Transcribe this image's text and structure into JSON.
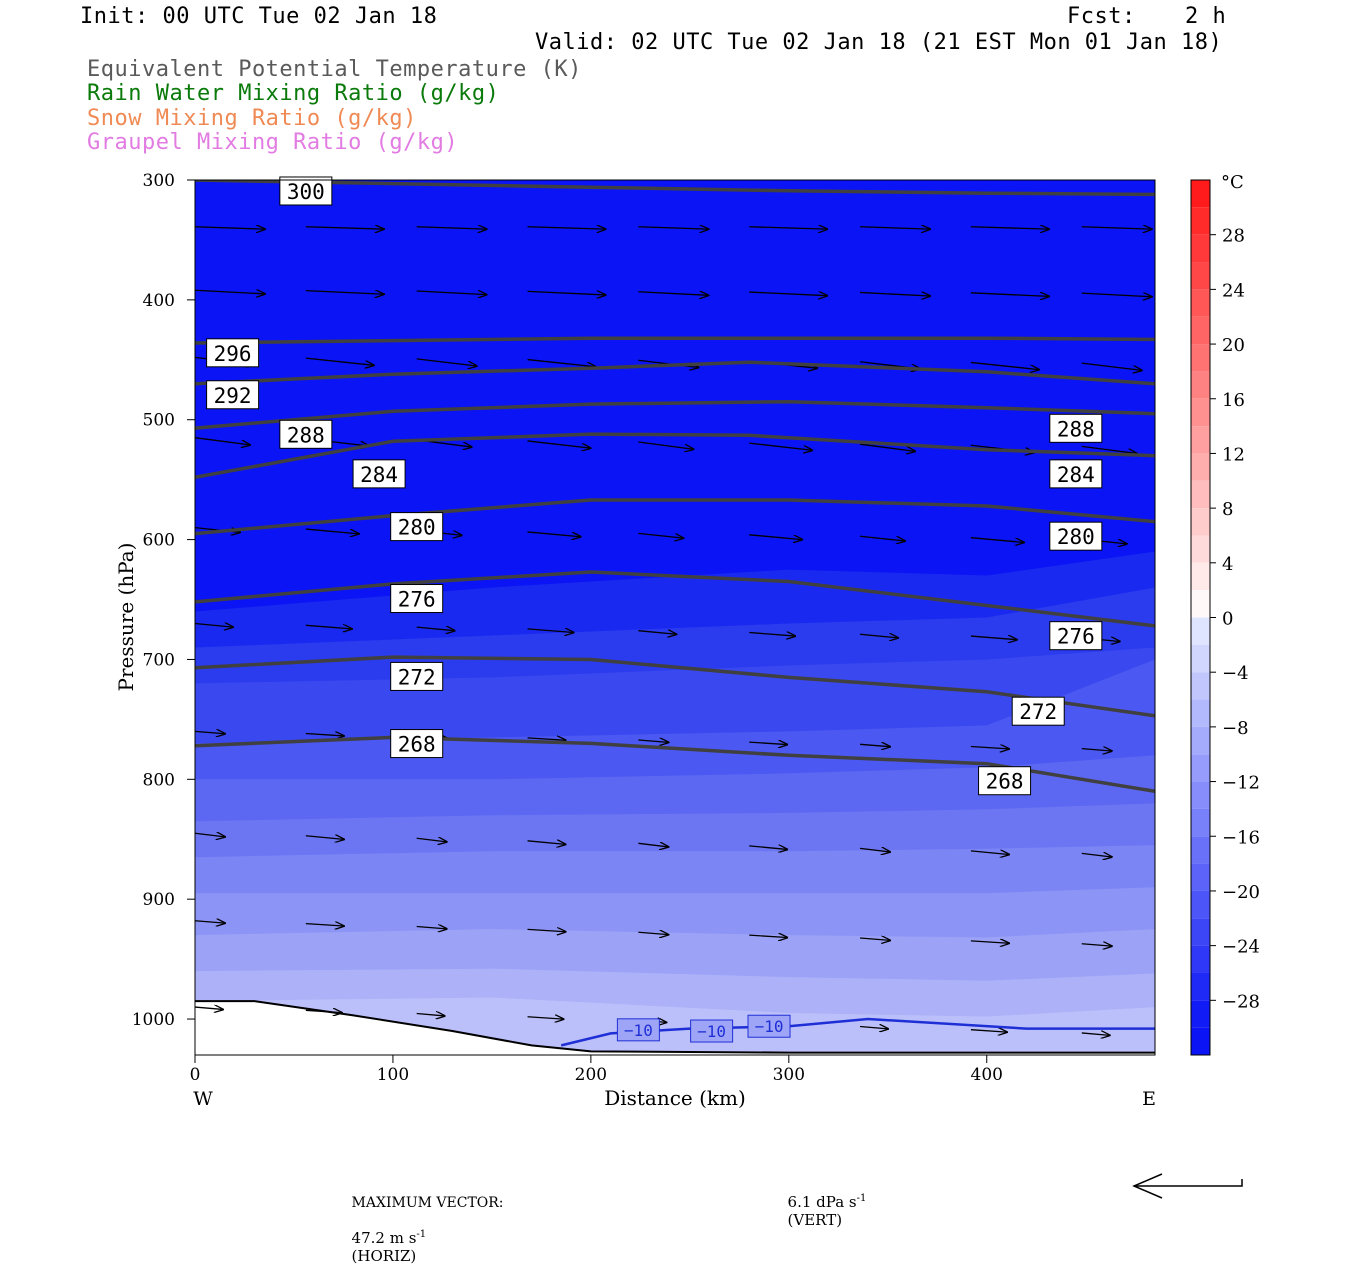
{
  "header": {
    "init": "Init: 00 UTC Tue 02 Jan 18",
    "fcst_label": "Fcst:",
    "fcst_value": "2 h",
    "valid": "Valid: 02 UTC Tue 02 Jan 18 (21 EST Mon 01 Jan 18)"
  },
  "legend": [
    {
      "label": "Equivalent Potential Temperature (K)",
      "color": "#5a5a5a"
    },
    {
      "label": "Rain Water Mixing Ratio (g/kg)",
      "color": "#0a7a0a"
    },
    {
      "label": "Snow Mixing Ratio (g/kg)",
      "color": "#f08a55"
    },
    {
      "label": "Graupel Mixing Ratio (g/kg)",
      "color": "#e27be2"
    }
  ],
  "footer": {
    "max_vector_label": "MAXIMUM VECTOR:",
    "horiz_value": "47.2 m s",
    "horiz_unit": "(HORIZ)",
    "vert_value": "6.1 dPa s",
    "vert_unit": "(VERT)",
    "exponent": "-1"
  },
  "chart_data": {
    "type": "contour",
    "xlabel": "Distance (km)",
    "ylabel": "Pressure (hPa)",
    "x_ticks": [
      0,
      100,
      200,
      300,
      400
    ],
    "y_ticks": [
      300,
      400,
      500,
      600,
      700,
      800,
      900,
      1000
    ],
    "xlim": [
      0,
      485
    ],
    "ylim": [
      300,
      1030
    ],
    "y_scale": "linear",
    "x_end_labels": {
      "left": "W",
      "right": "E"
    },
    "colorbar": {
      "unit": "°C",
      "tick_labels": [
        "28",
        "24",
        "20",
        "16",
        "12",
        "8",
        "4",
        "0",
        "−4",
        "−8",
        "−12",
        "−16",
        "−20",
        "−24",
        "−28"
      ],
      "tick_values": [
        28,
        24,
        20,
        16,
        12,
        8,
        4,
        0,
        -4,
        -8,
        -12,
        -16,
        -20,
        -24,
        -28
      ],
      "range": [
        -32,
        32
      ],
      "step": 2
    },
    "theta_e_contours": [
      {
        "label": "300",
        "points": [
          [
            0,
            300
          ],
          [
            100,
            303
          ],
          [
            200,
            306
          ],
          [
            300,
            309
          ],
          [
            400,
            311
          ],
          [
            485,
            312
          ]
        ],
        "label_positions": [
          [
            56,
            310
          ]
        ]
      },
      {
        "label": "296",
        "points": [
          [
            0,
            436
          ],
          [
            100,
            434
          ],
          [
            200,
            432
          ],
          [
            300,
            432
          ],
          [
            400,
            432
          ],
          [
            485,
            433
          ]
        ],
        "label_positions": [
          [
            19,
            445
          ]
        ]
      },
      {
        "label": "292",
        "points": [
          [
            0,
            470
          ],
          [
            100,
            462
          ],
          [
            200,
            457
          ],
          [
            280,
            452
          ],
          [
            400,
            460
          ],
          [
            485,
            470
          ]
        ],
        "label_positions": [
          [
            19,
            480
          ]
        ]
      },
      {
        "label": "288",
        "points": [
          [
            0,
            507
          ],
          [
            100,
            493
          ],
          [
            200,
            487
          ],
          [
            300,
            485
          ],
          [
            400,
            490
          ],
          [
            485,
            495
          ]
        ],
        "label_positions": [
          [
            56,
            513
          ],
          [
            445,
            508
          ]
        ]
      },
      {
        "label": "284",
        "points": [
          [
            0,
            548
          ],
          [
            100,
            518
          ],
          [
            200,
            512
          ],
          [
            280,
            513
          ],
          [
            400,
            525
          ],
          [
            485,
            530
          ]
        ],
        "label_positions": [
          [
            93,
            546
          ],
          [
            445,
            546
          ]
        ]
      },
      {
        "label": "280",
        "points": [
          [
            0,
            595
          ],
          [
            100,
            580
          ],
          [
            200,
            567
          ],
          [
            300,
            567
          ],
          [
            400,
            572
          ],
          [
            485,
            585
          ]
        ],
        "label_positions": [
          [
            112,
            590
          ],
          [
            445,
            598
          ]
        ]
      },
      {
        "label": "276",
        "points": [
          [
            0,
            652
          ],
          [
            100,
            637
          ],
          [
            200,
            627
          ],
          [
            300,
            635
          ],
          [
            400,
            655
          ],
          [
            485,
            672
          ]
        ],
        "label_positions": [
          [
            112,
            650
          ],
          [
            445,
            681
          ]
        ]
      },
      {
        "label": "272",
        "points": [
          [
            0,
            707
          ],
          [
            100,
            698
          ],
          [
            200,
            700
          ],
          [
            300,
            715
          ],
          [
            400,
            727
          ],
          [
            485,
            747
          ]
        ],
        "label_positions": [
          [
            112,
            715
          ],
          [
            426,
            744
          ]
        ]
      },
      {
        "label": "268",
        "points": [
          [
            0,
            772
          ],
          [
            100,
            765
          ],
          [
            200,
            770
          ],
          [
            300,
            780
          ],
          [
            400,
            787
          ],
          [
            485,
            810
          ]
        ],
        "label_positions": [
          [
            112,
            771
          ],
          [
            409,
            802
          ]
        ]
      }
    ],
    "temperature_contour": {
      "label": "−10",
      "value": -10,
      "color": "#1f2fd6",
      "points": [
        [
          185,
          1022
        ],
        [
          210,
          1012
        ],
        [
          250,
          1008
        ],
        [
          300,
          1006
        ],
        [
          340,
          1000
        ],
        [
          380,
          1004
        ],
        [
          420,
          1008
        ],
        [
          485,
          1008
        ]
      ],
      "label_positions": [
        [
          224,
          1009
        ],
        [
          261,
          1010
        ],
        [
          290,
          1006
        ]
      ]
    },
    "terrain_surface": [
      [
        0,
        985
      ],
      [
        30,
        985
      ],
      [
        80,
        997
      ],
      [
        130,
        1010
      ],
      [
        170,
        1022
      ],
      [
        200,
        1027
      ],
      [
        300,
        1028
      ],
      [
        400,
        1028
      ],
      [
        485,
        1028
      ]
    ]
  }
}
